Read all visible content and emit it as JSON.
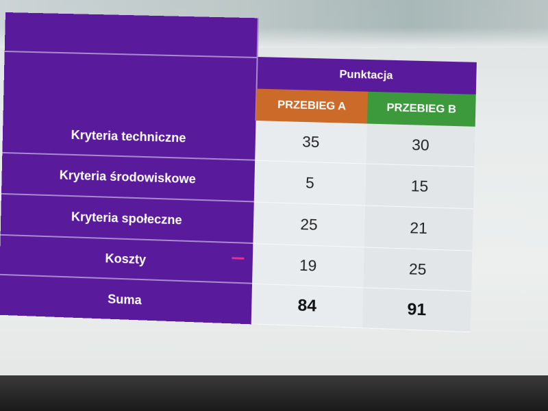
{
  "table": {
    "header_title": "Punktacja",
    "col_a": "PRZEBIEG A",
    "col_b": "PRZEBIEG B",
    "rows": [
      {
        "label": "Kryteria techniczne",
        "a": "35",
        "b": "30"
      },
      {
        "label": "Kryteria środowiskowe",
        "a": "5",
        "b": "15"
      },
      {
        "label": "Kryteria społeczne",
        "a": "25",
        "b": "21"
      },
      {
        "label": "Koszty",
        "a": "19",
        "b": "25"
      },
      {
        "label": "Suma",
        "a": "84",
        "b": "91"
      }
    ]
  },
  "colors": {
    "purple": "#5a1a9c",
    "orange": "#cc6a2a",
    "green": "#3c9a3c"
  }
}
